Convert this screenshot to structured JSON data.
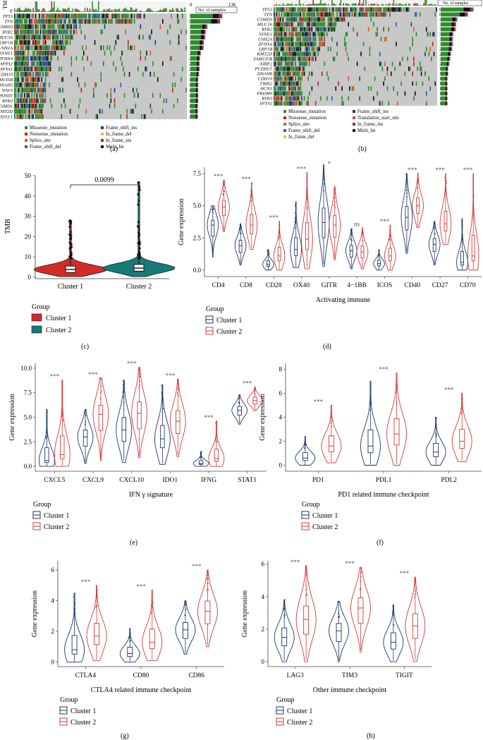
{
  "colors": {
    "missense": "#2e8b2e",
    "nonsense": "#c81e1e",
    "splice": "#e0562a",
    "fsdel": "#2b5fa8",
    "fsins": "#1f3d7a",
    "infdel": "#e6c229",
    "infins": "#8a3a1a",
    "multi": "#111111",
    "translation": "#d43a8a",
    "nomut": "#c8c8c8",
    "c1": "#1f3566",
    "c2": "#d23a3a",
    "tmb_c1": "#d42a2a",
    "tmb_c2": "#167a7a"
  },
  "panel_labels": {
    "a": "(a)",
    "b": "(b)",
    "c": "(c)",
    "d": "(d)",
    "e": "(e)",
    "f": "(f)",
    "g": "(g)",
    "h": "(h)"
  },
  "oncoprint_a": {
    "tmb_label": "TMB",
    "zero": "0",
    "axis_zero": "0",
    "axis_max": "136",
    "axis_title": "No. of samples",
    "genes": [
      "TP53",
      "TTN",
      "CSMD3",
      "RYR2",
      "MUC16",
      "LRP1B",
      "USH2A",
      "SYNE1",
      "ZFHX4",
      "PAPPA2",
      "SPTA1",
      "CDH10",
      "FAM135B",
      "DNAH5",
      "NAV3",
      "PKHD1",
      "RYR3",
      "CSMD1",
      "KMT2D",
      "PKHD1L1"
    ],
    "pcts": [
      "73%",
      "68%",
      "39%",
      "35%",
      "34%",
      "31%",
      "30%",
      "24%",
      "22%",
      "21%",
      "21%",
      "20%",
      "18%",
      "18%",
      "18%",
      "18%",
      "18%",
      "17%",
      "17%",
      "17%"
    ],
    "legend": [
      {
        "label": "Missense_mutation",
        "key": "missense"
      },
      {
        "label": "Frame_shift_ins",
        "key": "fsins"
      },
      {
        "label": "Nonsense_mutation",
        "key": "nonsense"
      },
      {
        "label": "In_frame_del",
        "key": "infdel"
      },
      {
        "label": "Splice_site",
        "key": "splice"
      },
      {
        "label": "In_frame_ins",
        "key": "infins"
      },
      {
        "label": "Frame_shift_del",
        "key": "fsdel"
      },
      {
        "label": "Multi_hit",
        "key": "multi"
      }
    ]
  },
  "oncoprint_b": {
    "zero": "0",
    "axis_title": "No. of samples",
    "genes": [
      "TP53",
      "TTN",
      "CSMD3",
      "MUC16",
      "RYR2",
      "SYNE1",
      "USH2A",
      "ZFHX4",
      "LRP1B",
      "KMT2D",
      "FAM135B",
      "XIRP2",
      "PCDH15",
      "DNAH8",
      "CDH10",
      "FMN2",
      "HCN1",
      "PRDM9",
      "RYR3",
      "SPTA1"
    ],
    "pcts": [
      "83%",
      "69%",
      "42%",
      "39%",
      "38%",
      "32%",
      "31%",
      "31%",
      "29%",
      "26%",
      "24%",
      "22%",
      "19%",
      "19%",
      "17%",
      "17%",
      "17%",
      "17%",
      "17%",
      "17%"
    ],
    "legend": [
      {
        "label": "Missense_mutation",
        "key": "missense"
      },
      {
        "label": "Frame_shift_ins",
        "key": "fsins"
      },
      {
        "label": "Nonsense_mutation",
        "key": "nonsense"
      },
      {
        "label": "Translation_start_site",
        "key": "translation"
      },
      {
        "label": "Splice_site",
        "key": "splice"
      },
      {
        "label": "In_frame_ins",
        "key": "infins"
      },
      {
        "label": "Frame_shift_del",
        "key": "fsdel"
      },
      {
        "label": "Multi_hit",
        "key": "multi"
      },
      {
        "label": "In_frame_del",
        "key": "infdel"
      }
    ]
  },
  "group_legend": {
    "title": "Group",
    "c1": "Cluster 1",
    "c2": "Cluster 2"
  },
  "chart_data": [
    {
      "type": "violin",
      "panel": "c",
      "title": "",
      "categories": [
        "Cluster 1",
        "Cluster 2"
      ],
      "ylabel": "TMB",
      "xlabel": "",
      "ylim": [
        0,
        50
      ],
      "yticks": [
        0,
        10,
        20,
        30,
        40,
        50
      ],
      "medians": [
        3.8,
        4.5
      ],
      "q1": [
        2.3,
        3.0
      ],
      "q3": [
        5.5,
        6.3
      ],
      "max": [
        28,
        47
      ],
      "pvalue": "0.0099"
    },
    {
      "type": "violin",
      "panel": "d",
      "title": "",
      "categories": [
        "CD4",
        "CD8",
        "CD28",
        "OX40",
        "GITR",
        "4−1BB",
        "ICOS",
        "CD40",
        "CD27",
        "CD70"
      ],
      "xlabel": "Activating immune",
      "ylabel": "Gene expression",
      "ylim": [
        -0.5,
        8
      ],
      "yticks": [
        0.0,
        2.5,
        5.0,
        7.5
      ],
      "ytick_labels": [
        "0.0",
        "2.5",
        "5.0",
        "7.5"
      ],
      "significance": [
        "***",
        "***",
        "***",
        "***",
        "*",
        "ns",
        "***",
        "***",
        "***",
        "***"
      ],
      "series": [
        {
          "name": "Cluster 1",
          "medians": [
            3.5,
            1.9,
            0.45,
            1.6,
            3.7,
            1.5,
            0.5,
            4.1,
            2.0,
            0.6
          ],
          "min": [
            1.0,
            0.4,
            0.0,
            0.2,
            0.3,
            0.1,
            0.0,
            1.3,
            0.4,
            0.0
          ],
          "max": [
            5.0,
            3.6,
            1.6,
            5.3,
            8.2,
            3.2,
            1.6,
            7.5,
            3.8,
            4.0
          ]
        },
        {
          "name": "Cluster 2",
          "medians": [
            4.9,
            3.5,
            1.1,
            2.4,
            3.5,
            1.4,
            1.1,
            5.0,
            3.6,
            1.1
          ],
          "min": [
            3.0,
            1.6,
            0.0,
            0.1,
            0.8,
            0.1,
            0.0,
            3.3,
            2.0,
            0.0
          ],
          "max": [
            7.0,
            6.8,
            3.8,
            7.6,
            6.5,
            3.3,
            3.5,
            7.5,
            7.5,
            7.5
          ]
        }
      ]
    },
    {
      "type": "violin",
      "panel": "e",
      "title": "",
      "categories": [
        "CXCL5",
        "CXCL9",
        "CXCL10",
        "IDO1",
        "IFNG",
        "STAT1"
      ],
      "xlabel": "IFN γ signature",
      "ylabel": "Gene expression",
      "ylim": [
        -0.5,
        10.5
      ],
      "yticks": [
        0,
        2.5,
        5,
        7.5,
        10
      ],
      "ytick_labels": [
        "0.0",
        "2.5",
        "5.0",
        "7.5",
        "10.0"
      ],
      "significance": [
        "***",
        "***",
        "***",
        "***",
        "***",
        "***"
      ],
      "series": [
        {
          "name": "Cluster 1",
          "medians": [
            0.6,
            3.0,
            3.7,
            2.8,
            0.3,
            5.7
          ],
          "min": [
            0.0,
            0.3,
            0.4,
            0.2,
            0.0,
            4.3
          ],
          "max": [
            5.8,
            5.8,
            8.8,
            8.3,
            1.5,
            7.3
          ]
        },
        {
          "name": "Cluster 2",
          "medians": [
            1.2,
            5.3,
            5.4,
            4.6,
            0.8,
            6.7
          ],
          "min": [
            0.0,
            0.6,
            0.9,
            1.0,
            0.0,
            5.7
          ],
          "max": [
            8.8,
            9.0,
            10.1,
            8.9,
            4.6,
            8.1
          ]
        }
      ]
    },
    {
      "type": "violin",
      "panel": "f",
      "title": "",
      "categories": [
        "PD1",
        "PDL1",
        "PDL2"
      ],
      "xlabel": "PD1 related immune checkpoint",
      "ylabel": "Gene expression",
      "ylim": [
        -0.5,
        8.5
      ],
      "yticks": [
        0,
        2,
        4,
        6,
        8
      ],
      "ytick_labels": [
        "0",
        "2",
        "4",
        "6",
        "8"
      ],
      "significance": [
        "***",
        "***",
        "***"
      ],
      "series": [
        {
          "name": "Cluster 1",
          "medians": [
            0.6,
            1.6,
            1.1
          ],
          "min": [
            0.0,
            0.0,
            0.0
          ],
          "max": [
            2.4,
            7.0,
            4.0
          ]
        },
        {
          "name": "Cluster 2",
          "medians": [
            1.6,
            2.6,
            2.0
          ],
          "min": [
            0.2,
            0.0,
            0.3
          ],
          "max": [
            5.0,
            7.7,
            6.0
          ]
        }
      ]
    },
    {
      "type": "violin",
      "panel": "g",
      "title": "",
      "categories": [
        "CTLA4",
        "CD80",
        "CD86"
      ],
      "xlabel": "CTLA4 related immune checkpoint",
      "ylabel": "Gene expression",
      "ylim": [
        -0.3,
        6.6
      ],
      "yticks": [
        0,
        2,
        4,
        6
      ],
      "ytick_labels": [
        "0",
        "2",
        "4",
        "6"
      ],
      "significance": [
        "***",
        "***",
        "***"
      ],
      "series": [
        {
          "name": "Cluster 1",
          "medians": [
            0.8,
            0.55,
            2.1
          ],
          "min": [
            0.0,
            0.0,
            0.5
          ],
          "max": [
            4.5,
            2.2,
            4.0
          ]
        },
        {
          "name": "Cluster 2",
          "medians": [
            1.7,
            1.3,
            3.3
          ],
          "min": [
            0.1,
            0.1,
            1.0
          ],
          "max": [
            5.0,
            4.7,
            6.0
          ]
        }
      ]
    },
    {
      "type": "violin",
      "panel": "h",
      "title": "",
      "categories": [
        "LAG3",
        "TIM3",
        "TIGIT"
      ],
      "xlabel": "Other immune checkpoint",
      "ylabel": "Gene expression",
      "ylim": [
        -0.3,
        6.2
      ],
      "yticks": [
        0,
        2,
        4,
        6
      ],
      "ytick_labels": [
        "0",
        "2",
        "4",
        "6"
      ],
      "significance": [
        "***",
        "***",
        "***"
      ],
      "series": [
        {
          "name": "Cluster 1",
          "medians": [
            1.5,
            1.9,
            1.2
          ],
          "min": [
            0.0,
            0.0,
            0.0
          ],
          "max": [
            3.8,
            3.7,
            3.5
          ]
        },
        {
          "name": "Cluster 2",
          "medians": [
            2.6,
            3.3,
            2.2
          ],
          "min": [
            0.0,
            0.6,
            0.0
          ],
          "max": [
            5.9,
            5.8,
            5.2
          ]
        }
      ]
    }
  ]
}
